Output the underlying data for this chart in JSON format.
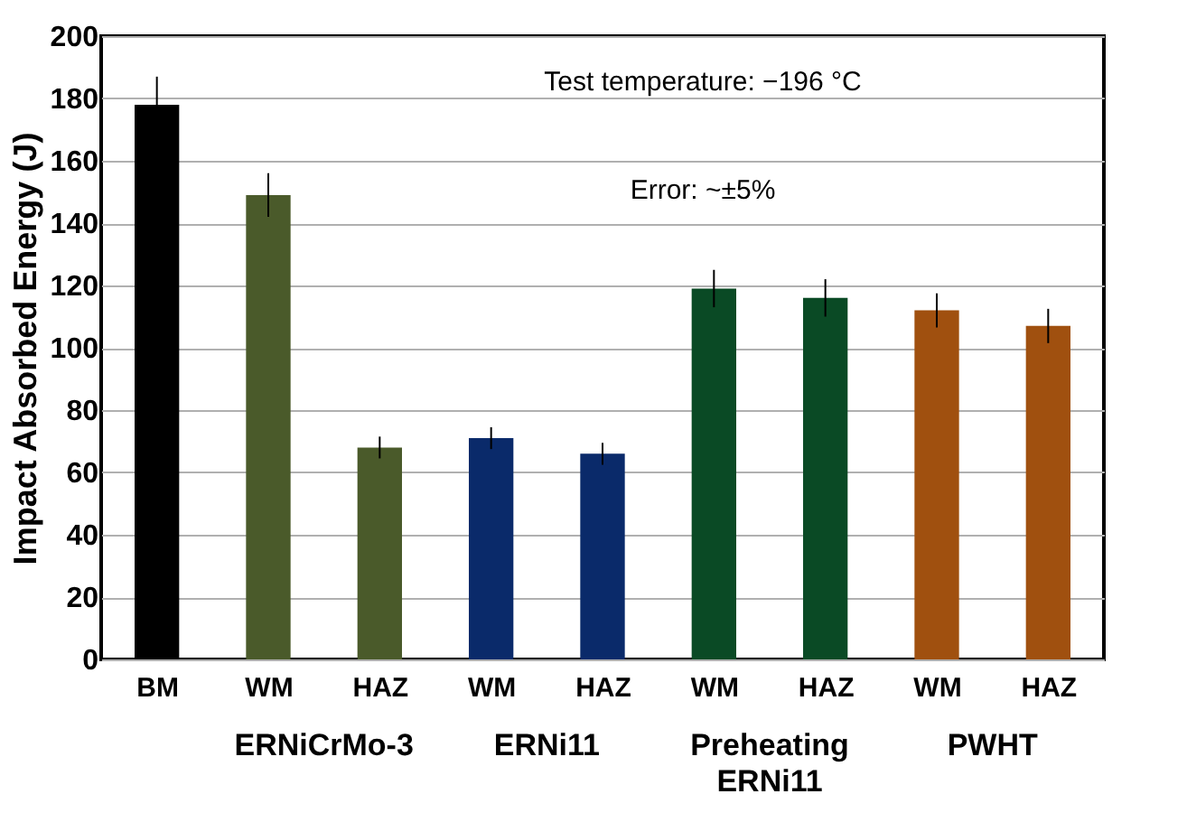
{
  "chart_data": {
    "type": "bar",
    "ylabel": "Impact Absorbed Energy (J)",
    "categories": [
      "BM",
      "WM",
      "HAZ",
      "WM",
      "HAZ",
      "WM",
      "HAZ",
      "WM",
      "HAZ"
    ],
    "values": [
      178,
      149,
      68,
      71,
      66,
      119,
      116,
      112,
      107
    ],
    "errors": [
      9,
      7,
      3.5,
      3.5,
      3.5,
      6,
      6,
      5.5,
      5.5
    ],
    "colors": [
      "#000000",
      "#4a5a2a",
      "#4a5a2a",
      "#0a2a6a",
      "#0a2a6a",
      "#0a4a25",
      "#0a4a25",
      "#a0500f",
      "#a0500f"
    ],
    "ylim": [
      0,
      200
    ],
    "yticks": [
      0,
      20,
      40,
      60,
      80,
      100,
      120,
      140,
      160,
      180,
      200
    ],
    "grid": "y",
    "annotations": [
      "Test temperature: −196 °C",
      "Error: ~±5%",
      "ERNiCrMo-3",
      "ERNi11",
      "Preheating\nERNi11",
      "PWHT"
    ]
  }
}
